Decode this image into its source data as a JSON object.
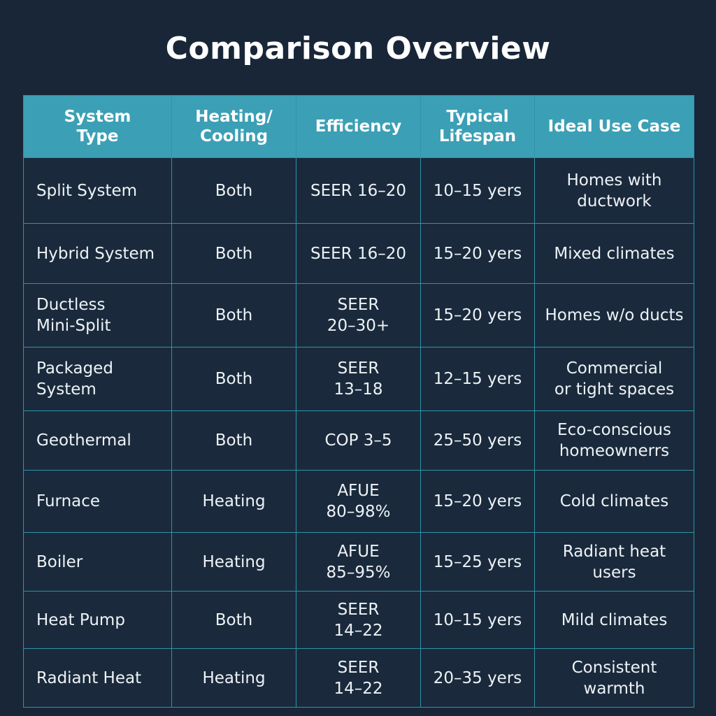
{
  "title": "Comparison Overview",
  "colors": {
    "background": "#182638",
    "header": "#3b9fb5",
    "grid": "#2f93a9",
    "text": "#ffffff"
  },
  "table": {
    "headers": [
      "System\nType",
      "Heating/\nCooling",
      "Efficiency",
      "Typical\nLifespan",
      "Ideal Use Case"
    ],
    "rows": [
      [
        "Split System",
        "Both",
        "SEER 16–20",
        "10–15 yers",
        "Homes with\nductwork"
      ],
      [
        "Hybrid System",
        "Both",
        "SEER 16–20",
        "15–20 yers",
        "Mixed climates"
      ],
      [
        "Ductless\nMini-Split",
        "Both",
        "SEER\n20–30+",
        "15–20 yers",
        "Homes w/o ducts"
      ],
      [
        "Packaged\nSystem",
        "Both",
        "SEER\n13–18",
        "12–15 yers",
        "Commercial\nor tight spaces"
      ],
      [
        "Geothermal",
        "Both",
        "COP 3–5",
        "25–50 yers",
        "Eco-conscious\nhomeownerrs"
      ],
      [
        "Furnace",
        "Heating",
        "AFUE\n80–98%",
        "15–20 yers",
        "Cold climates"
      ],
      [
        "Boiler",
        "Heating",
        "AFUE\n85–95%",
        "15–25 yers",
        "Radiant heat\nusers"
      ],
      [
        "Heat Pump",
        "Both",
        "SEER\n14–22",
        "10–15 yers",
        "Mild climates"
      ],
      [
        "Radiant Heat",
        "Heating",
        "SEER\n14–22",
        "20–35 yers",
        "Consistent\nwarmth"
      ]
    ]
  }
}
